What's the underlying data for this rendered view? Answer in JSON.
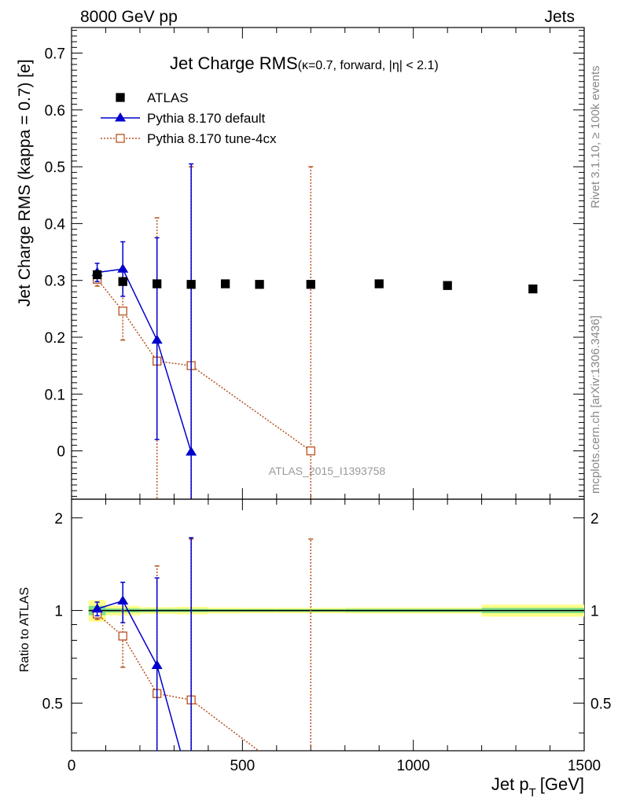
{
  "header": {
    "left": "8000 GeV pp",
    "right": "Jets"
  },
  "side_labels": {
    "rivet": "Rivet 3.1.10, ≥ 100k events",
    "mcplots": "mcplots.cern.ch [arXiv:1306.3436]"
  },
  "watermark": "ATLAS_2015_I1393758",
  "colors": {
    "atlas": "#000000",
    "pythia_default": "#0000cc",
    "pythia_tune4cx": "#b8501e",
    "band_inner": "#7ee08a",
    "band_outer": "#ffff88"
  },
  "chart_data": [
    {
      "type": "scatter",
      "title_main": "Jet Charge RMS",
      "title_sub": "(κ=0.7, forward, |η| < 2.1)",
      "xlabel": "",
      "ylabel": "Jet Charge RMS (kappa = 0.7) [e]",
      "xlim": [
        0,
        1500
      ],
      "ylim": [
        -0.085,
        0.745
      ],
      "yticks": [
        0,
        0.1,
        0.2,
        0.3,
        0.4,
        0.5,
        0.6,
        0.7
      ],
      "ytick_labels": [
        "0",
        "0.1",
        "0.2",
        "0.3",
        "0.4",
        "0.5",
        "0.6",
        "0.7"
      ],
      "legend_position": "top-left",
      "series": [
        {
          "name": "ATLAS",
          "style": "filled-square",
          "x": [
            75,
            150,
            250,
            350,
            450,
            550,
            700,
            900,
            1100,
            1350
          ],
          "y": [
            0.31,
            0.298,
            0.294,
            0.293,
            0.294,
            0.293,
            0.293,
            0.294,
            0.291,
            0.285
          ],
          "yerr": [
            0,
            0,
            0,
            0,
            0,
            0,
            0,
            0,
            0,
            0
          ]
        },
        {
          "name": "Pythia 8.170 default",
          "style": "triangle-solid",
          "x": [
            75,
            150,
            250,
            350
          ],
          "y": [
            0.314,
            0.32,
            0.195,
            -0.002
          ],
          "ylow": [
            0.298,
            0.272,
            0.02,
            -0.1
          ],
          "yhigh": [
            0.33,
            0.368,
            0.375,
            0.505
          ]
        },
        {
          "name": "Pythia 8.170 tune-4cx",
          "style": "open-square-dotted",
          "x": [
            75,
            150,
            250,
            350,
            700
          ],
          "y": [
            0.302,
            0.246,
            0.158,
            0.15,
            0.0
          ],
          "ylow": [
            0.29,
            0.195,
            -0.1,
            -0.1,
            -0.1
          ],
          "yhigh": [
            0.314,
            0.297,
            0.41,
            0.5,
            0.5
          ]
        }
      ]
    },
    {
      "type": "scatter",
      "xlabel": "Jet pT [GeV]",
      "xlabel_main": "Jet p",
      "xlabel_sub": "T",
      "xlabel_unit": "[GeV]",
      "ylabel": "Ratio to ATLAS",
      "xlim": [
        0,
        1500
      ],
      "ylim": [
        0.35,
        2.3
      ],
      "ylog": true,
      "xticks": [
        0,
        500,
        1000,
        1500
      ],
      "xtick_labels": [
        "0",
        "500",
        "1000",
        "1500"
      ],
      "yticks": [
        0.5,
        1,
        2
      ],
      "ytick_labels": [
        "0.5",
        "1",
        "2"
      ],
      "band": {
        "bins": [
          [
            50,
            100
          ],
          [
            100,
            200
          ],
          [
            200,
            300
          ],
          [
            300,
            400
          ],
          [
            400,
            500
          ],
          [
            500,
            600
          ],
          [
            600,
            800
          ],
          [
            800,
            1000
          ],
          [
            1000,
            1200
          ],
          [
            1200,
            1500
          ]
        ],
        "inner": [
          0.035,
          0.015,
          0.012,
          0.012,
          0.01,
          0.01,
          0.01,
          0.012,
          0.012,
          0.02
        ],
        "outer": [
          0.08,
          0.035,
          0.025,
          0.028,
          0.022,
          0.02,
          0.02,
          0.022,
          0.022,
          0.045
        ]
      },
      "series": [
        {
          "name": "Pythia 8.170 default",
          "style": "triangle-solid",
          "x": [
            75,
            150,
            250,
            350
          ],
          "y": [
            1.012,
            1.075,
            0.663,
            -0.007
          ],
          "ylow": [
            0.961,
            0.913,
            0.068,
            -0.1
          ],
          "yhigh": [
            1.065,
            1.235,
            1.276,
            1.724
          ]
        },
        {
          "name": "Pythia 8.170 tune-4cx",
          "style": "open-square-dotted",
          "x": [
            75,
            150,
            250,
            350,
            700
          ],
          "y": [
            0.974,
            0.826,
            0.537,
            0.512,
            0.0
          ],
          "ylow": [
            0.935,
            0.654,
            -0.1,
            -0.1,
            -0.1
          ],
          "yhigh": [
            1.013,
            0.997,
            1.395,
            1.707,
            1.707
          ]
        }
      ]
    }
  ]
}
